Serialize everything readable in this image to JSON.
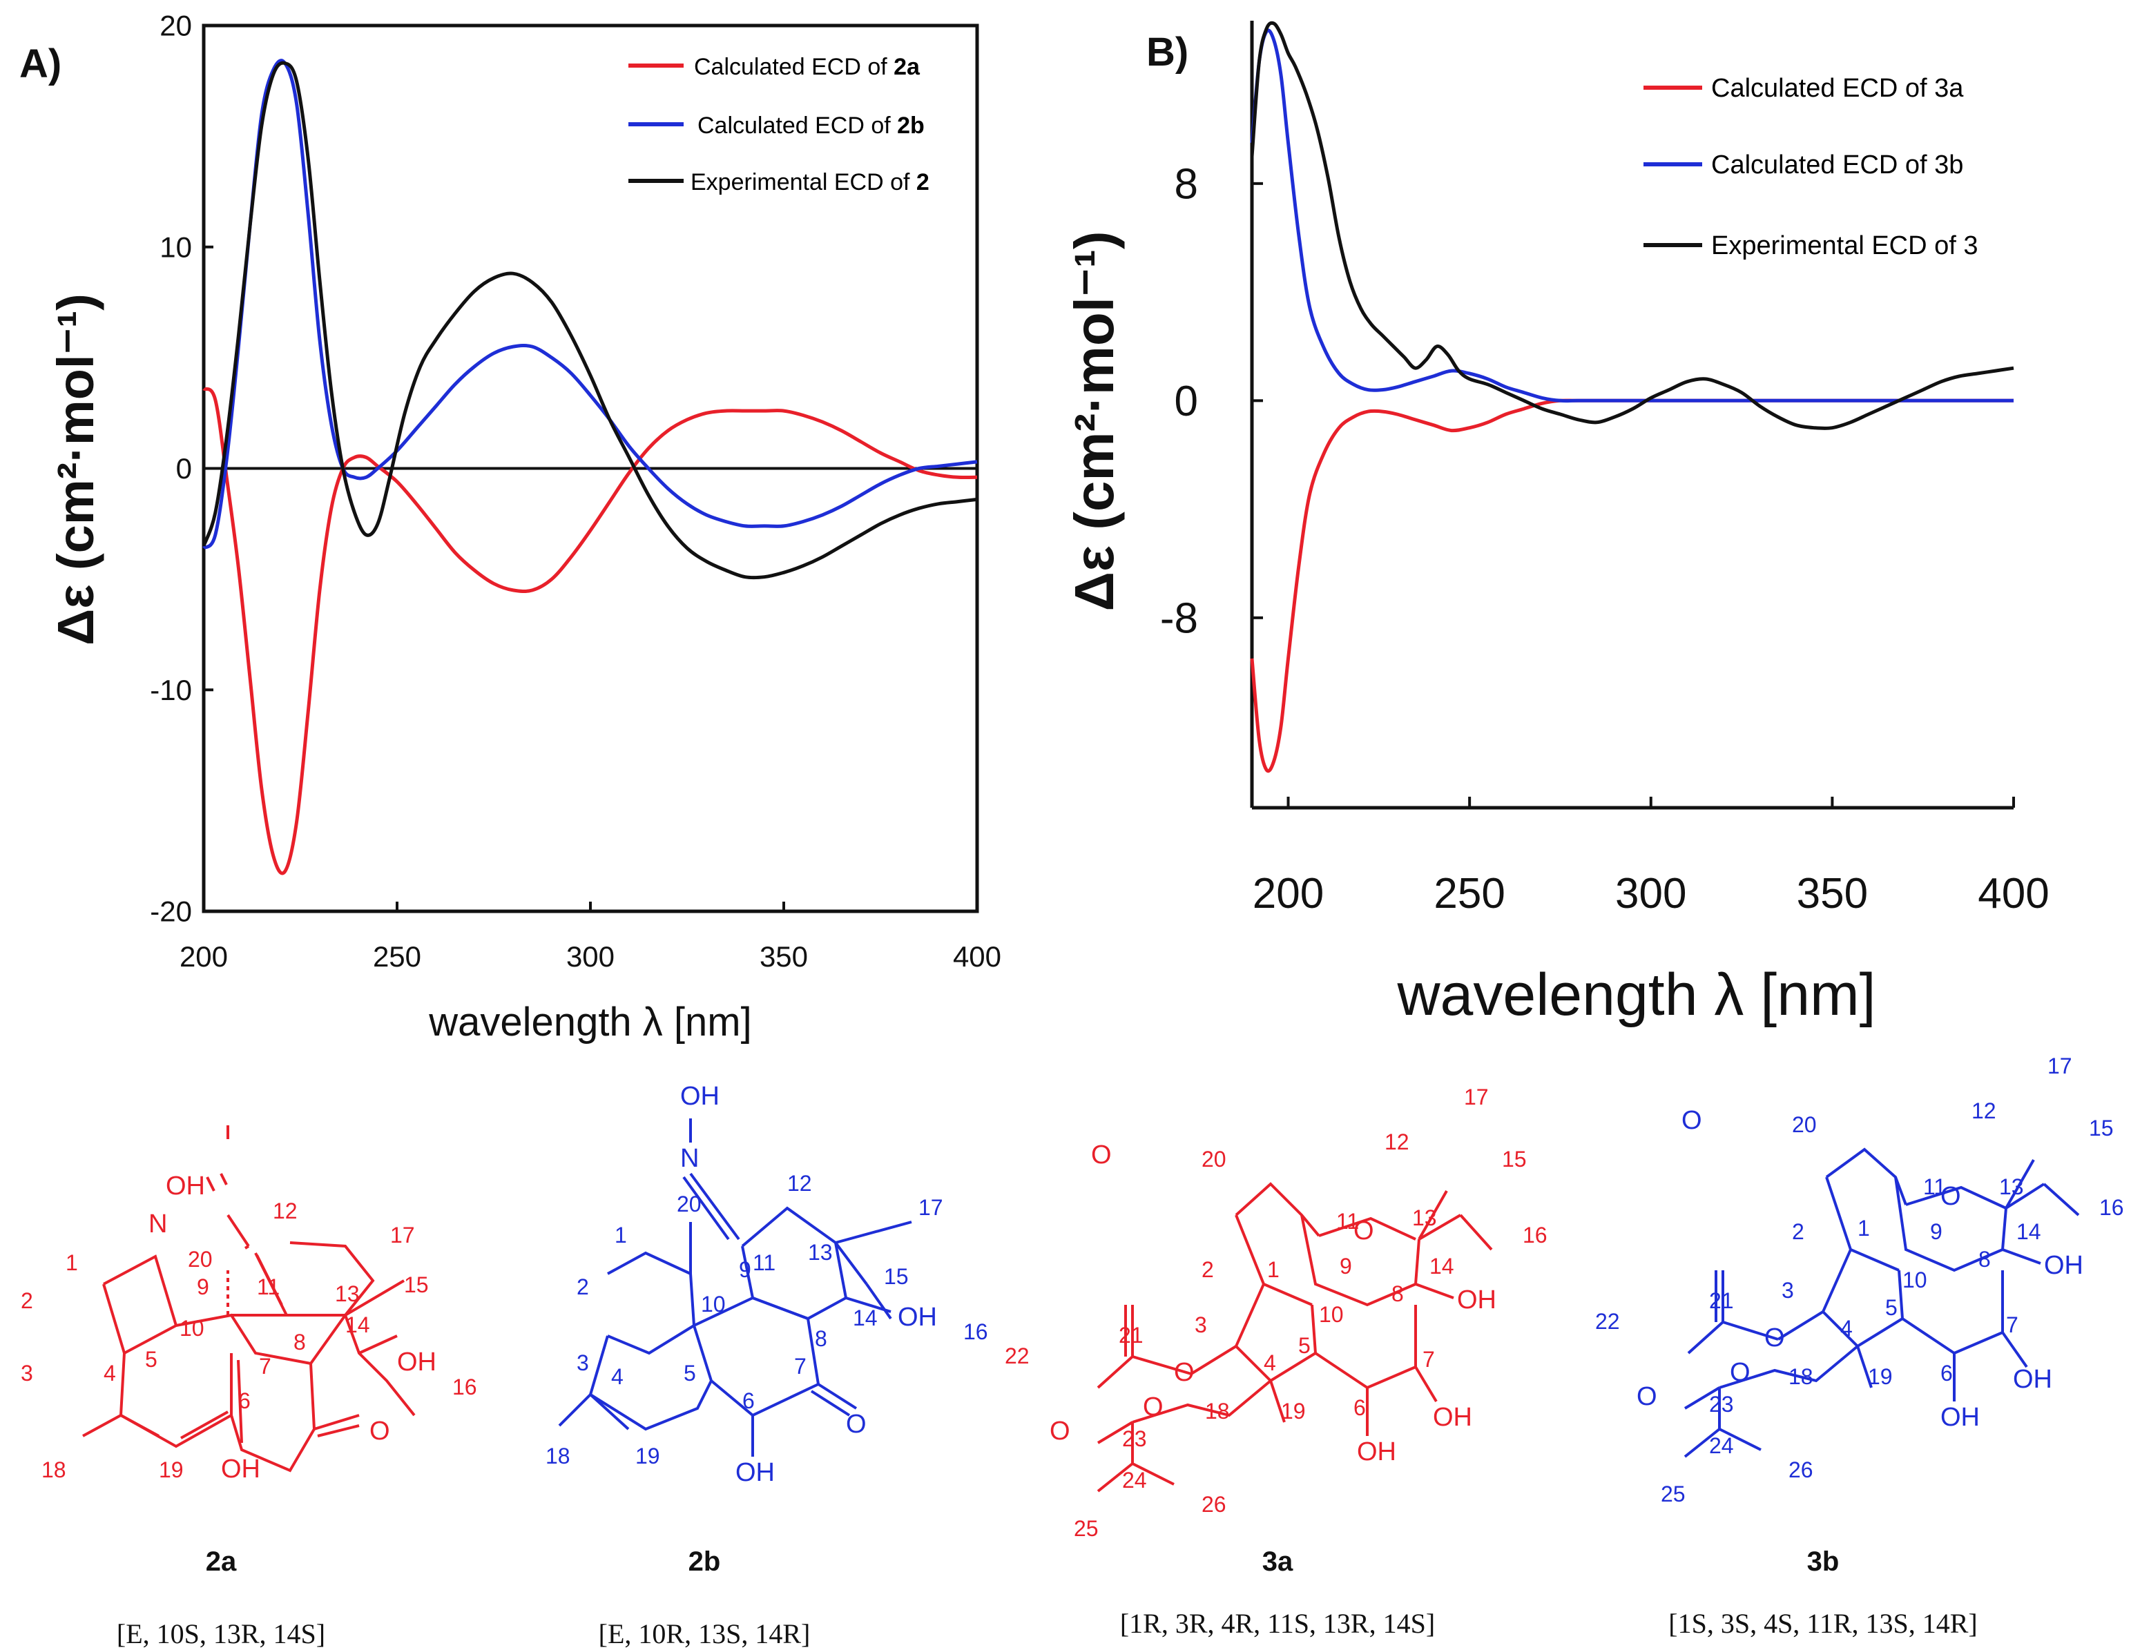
{
  "chart_data": [
    {
      "panel_label": "A)",
      "type": "line",
      "xlabel": "wavelength λ [nm]",
      "ylabel": "Δε (cm²·mol⁻¹)",
      "xlim": [
        200,
        400
      ],
      "ylim": [
        -20,
        20
      ],
      "xticks": [
        200,
        250,
        300,
        350,
        400
      ],
      "yticks": [
        20,
        10,
        0,
        -10,
        -20
      ],
      "ytick_labels": [
        "20",
        "10",
        "0",
        "-10",
        "-20"
      ],
      "series": [
        {
          "name": "Calculated ECD of  2a",
          "label_main": "Calculated ECD of",
          "label_bold": "2a",
          "color": "#e8202a",
          "x": [
            200,
            203,
            206,
            209,
            212,
            215,
            218,
            221,
            224,
            227,
            230,
            233,
            236,
            239,
            242,
            245,
            250,
            255,
            260,
            265,
            270,
            275,
            280,
            285,
            290,
            295,
            300,
            305,
            310,
            315,
            320,
            325,
            330,
            335,
            340,
            345,
            350,
            355,
            360,
            365,
            370,
            375,
            380,
            385,
            390,
            395,
            400
          ],
          "y": [
            3.6,
            3.1,
            -0.5,
            -4.5,
            -9.5,
            -14.5,
            -17.5,
            -18.2,
            -16.0,
            -11.0,
            -5.5,
            -1.8,
            0.0,
            0.5,
            0.5,
            0.1,
            -0.6,
            -1.6,
            -2.7,
            -3.8,
            -4.6,
            -5.2,
            -5.5,
            -5.5,
            -5.0,
            -4.0,
            -2.8,
            -1.5,
            -0.2,
            0.9,
            1.7,
            2.2,
            2.5,
            2.6,
            2.6,
            2.6,
            2.6,
            2.4,
            2.1,
            1.7,
            1.2,
            0.7,
            0.3,
            -0.1,
            -0.3,
            -0.4,
            -0.4
          ]
        },
        {
          "name": "Calculated ECD of  2b",
          "label_main": "Calculated ECD of",
          "label_bold": "2b",
          "color": "#1e2ed6",
          "x": [
            200,
            203,
            206,
            209,
            212,
            215,
            218,
            221,
            224,
            227,
            230,
            233,
            236,
            239,
            242,
            245,
            250,
            255,
            260,
            265,
            270,
            275,
            280,
            285,
            290,
            295,
            300,
            305,
            310,
            315,
            320,
            325,
            330,
            335,
            340,
            345,
            350,
            355,
            360,
            365,
            370,
            375,
            380,
            385,
            390,
            395,
            400
          ],
          "y": [
            -3.6,
            -3.0,
            0.5,
            5.5,
            11.0,
            16.0,
            18.0,
            18.3,
            16.5,
            11.5,
            5.8,
            2.0,
            0.0,
            -0.4,
            -0.4,
            0.0,
            0.8,
            1.8,
            2.8,
            3.8,
            4.6,
            5.2,
            5.5,
            5.5,
            5.0,
            4.3,
            3.3,
            2.2,
            1.0,
            0.0,
            -0.9,
            -1.6,
            -2.1,
            -2.4,
            -2.6,
            -2.6,
            -2.6,
            -2.4,
            -2.1,
            -1.7,
            -1.2,
            -0.7,
            -0.3,
            0.0,
            0.1,
            0.2,
            0.3
          ]
        },
        {
          "name": "Experimental ECD of  2",
          "label_main": "Experimental ECD of",
          "label_bold": "2",
          "color": "#111111",
          "x": [
            200,
            203,
            206,
            209,
            212,
            215,
            218,
            221,
            224,
            227,
            230,
            233,
            236,
            239,
            242,
            245,
            248,
            252,
            256,
            260,
            265,
            270,
            275,
            280,
            285,
            290,
            295,
            300,
            305,
            310,
            315,
            320,
            325,
            330,
            335,
            340,
            345,
            350,
            355,
            360,
            365,
            370,
            375,
            380,
            385,
            390,
            395,
            400
          ],
          "y": [
            -3.5,
            -2.0,
            1.5,
            6.0,
            11.0,
            15.5,
            17.8,
            18.3,
            17.5,
            14.0,
            8.5,
            3.5,
            0.0,
            -2.0,
            -3.0,
            -2.5,
            -0.5,
            2.5,
            4.6,
            5.8,
            7.0,
            8.0,
            8.6,
            8.8,
            8.4,
            7.5,
            6.0,
            4.2,
            2.2,
            0.5,
            -1.2,
            -2.6,
            -3.6,
            -4.2,
            -4.6,
            -4.9,
            -4.9,
            -4.7,
            -4.4,
            -4.0,
            -3.5,
            -3.0,
            -2.5,
            -2.1,
            -1.8,
            -1.6,
            -1.5,
            -1.4
          ]
        }
      ]
    },
    {
      "panel_label": "B)",
      "type": "line",
      "xlabel": "wavelength λ [nm]",
      "ylabel": "Δε (cm²·mol⁻¹)",
      "xlim": [
        190,
        400
      ],
      "ylim": [
        -15,
        14
      ],
      "xticks": [
        200,
        250,
        300,
        350,
        400
      ],
      "yticks": [
        8,
        0,
        -8
      ],
      "ytick_labels": [
        "8",
        "0",
        "-8"
      ],
      "series": [
        {
          "name": "Calculated ECD of 3a",
          "color": "#e8202a",
          "x": [
            190,
            192,
            194,
            196,
            198,
            200,
            203,
            206,
            210,
            214,
            218,
            222,
            226,
            230,
            235,
            240,
            245,
            250,
            255,
            260,
            265,
            270,
            275,
            280,
            290,
            300,
            320,
            340,
            360,
            380,
            400
          ],
          "y": [
            -9.5,
            -12.5,
            -13.6,
            -13.3,
            -12.0,
            -9.5,
            -6.0,
            -3.4,
            -1.9,
            -1.0,
            -0.6,
            -0.4,
            -0.4,
            -0.5,
            -0.7,
            -0.9,
            -1.1,
            -1.0,
            -0.8,
            -0.5,
            -0.3,
            -0.1,
            0.0,
            0.0,
            0.0,
            0.0,
            0.0,
            0.0,
            0.0,
            0.0,
            0.0
          ]
        },
        {
          "name": "Calculated ECD of 3b",
          "color": "#1e2ed6",
          "x": [
            190,
            192,
            194,
            196,
            198,
            200,
            203,
            206,
            210,
            214,
            218,
            222,
            226,
            230,
            235,
            240,
            245,
            250,
            255,
            260,
            265,
            270,
            275,
            280,
            290,
            300,
            320,
            340,
            360,
            380,
            400
          ],
          "y": [
            9.5,
            12.5,
            13.6,
            13.3,
            12.0,
            9.5,
            6.0,
            3.4,
            1.9,
            1.0,
            0.6,
            0.4,
            0.4,
            0.5,
            0.7,
            0.9,
            1.1,
            1.0,
            0.8,
            0.5,
            0.3,
            0.1,
            0.0,
            0.0,
            0.0,
            0.0,
            0.0,
            0.0,
            0.0,
            0.0,
            0.0
          ]
        },
        {
          "name": "Experimental ECD of 3",
          "color": "#111111",
          "x": [
            190,
            192,
            194,
            196,
            198,
            200,
            202,
            205,
            208,
            211,
            214,
            217,
            220,
            223,
            226,
            229,
            232,
            235,
            238,
            241,
            244,
            247,
            250,
            255,
            260,
            265,
            270,
            275,
            280,
            285,
            290,
            295,
            300,
            305,
            310,
            315,
            320,
            325,
            330,
            335,
            340,
            345,
            350,
            355,
            360,
            365,
            370,
            375,
            380,
            385,
            390,
            395,
            400
          ],
          "y": [
            9.0,
            12.5,
            13.7,
            13.9,
            13.5,
            12.8,
            12.3,
            11.3,
            10.0,
            8.2,
            6.0,
            4.4,
            3.4,
            2.8,
            2.4,
            2.0,
            1.6,
            1.2,
            1.5,
            2.0,
            1.7,
            1.1,
            0.8,
            0.6,
            0.3,
            0.0,
            -0.3,
            -0.5,
            -0.7,
            -0.8,
            -0.6,
            -0.3,
            0.1,
            0.4,
            0.7,
            0.8,
            0.6,
            0.3,
            -0.2,
            -0.6,
            -0.9,
            -1.0,
            -1.0,
            -0.8,
            -0.5,
            -0.2,
            0.1,
            0.4,
            0.7,
            0.9,
            1.0,
            1.1,
            1.2
          ]
        }
      ]
    }
  ],
  "structures": [
    {
      "name": "2a",
      "color": "#e8202a",
      "config": "[E, 10S, 13R, 14S]",
      "labels": [
        "OH",
        "N",
        "1",
        "2",
        "3",
        "4",
        "5",
        "6",
        "7",
        "8",
        "9",
        "10",
        "11",
        "12",
        "13",
        "14",
        "15",
        "16",
        "17",
        "18",
        "19",
        "20",
        "O",
        "OH",
        "OH"
      ]
    },
    {
      "name": "2b",
      "color": "#1e2ed6",
      "config": "[E, 10R, 13S, 14R]",
      "labels": [
        "OH",
        "N",
        "1",
        "2",
        "3",
        "4",
        "5",
        "6",
        "7",
        "8",
        "9",
        "10",
        "11",
        "12",
        "13",
        "14",
        "15",
        "16",
        "17",
        "18",
        "19",
        "20",
        "O",
        "OH",
        "OH"
      ]
    },
    {
      "name": "3a",
      "color": "#e8202a",
      "config": "[1R, 3R, 4R, 11S, 13R, 14S]",
      "labels": [
        "O",
        "1",
        "2",
        "3",
        "4",
        "5",
        "6",
        "7",
        "8",
        "9",
        "10",
        "11",
        "12",
        "13",
        "14",
        "15",
        "16",
        "17",
        "18",
        "19",
        "20",
        "21",
        "22",
        "23",
        "24",
        "25",
        "26",
        "O",
        "O",
        "O",
        "O",
        "OH",
        "OH",
        "OH"
      ]
    },
    {
      "name": "3b",
      "color": "#1e2ed6",
      "config": "[1S, 3S, 4S, 11R, 13S, 14R]",
      "labels": [
        "O",
        "1",
        "2",
        "3",
        "4",
        "5",
        "6",
        "7",
        "8",
        "9",
        "10",
        "11",
        "12",
        "13",
        "14",
        "15",
        "16",
        "17",
        "18",
        "19",
        "20",
        "21",
        "22",
        "23",
        "24",
        "25",
        "26",
        "O",
        "O",
        "O",
        "O",
        "OH",
        "OH",
        "OH"
      ]
    }
  ]
}
